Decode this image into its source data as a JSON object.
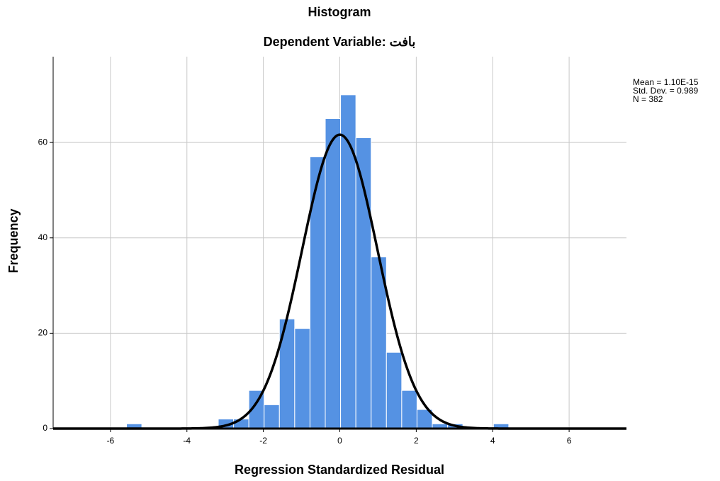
{
  "chart_data": {
    "type": "histogram",
    "title": "Histogram",
    "subtitle": "Dependent Variable: بافت",
    "x_label": "Regression Standardized Residual",
    "y_label": "Frequency",
    "bins": [
      -5.58,
      -5.18,
      -4.78,
      -4.38,
      -3.98,
      -3.58,
      -3.18,
      -2.78,
      -2.38,
      -1.98,
      -1.58,
      -1.18,
      -0.78,
      -0.38,
      0.02,
      0.42,
      0.82,
      1.22,
      1.62,
      2.02,
      2.42,
      2.82,
      3.22,
      3.62,
      4.02,
      4.42
    ],
    "values": [
      1,
      0,
      0,
      0,
      0,
      0,
      2,
      2,
      8,
      5,
      23,
      21,
      57,
      65,
      70,
      61,
      36,
      16,
      8,
      4,
      1,
      1,
      0,
      0,
      1
    ],
    "color": "#5592e3",
    "xlim": [
      -7.5,
      7.5
    ],
    "xticks": [
      -6,
      -4,
      -2,
      0,
      2,
      4,
      6
    ],
    "ylim": [
      0,
      78
    ],
    "yticks": [
      0,
      20,
      40,
      60
    ],
    "grid": true,
    "stats_text": [
      "Mean = 1.10E-15",
      "Std. Dev. = 0.989",
      "N = 382"
    ],
    "normal_curve": {
      "mean": 1.1e-15,
      "std_dev": 0.989,
      "n": 382,
      "color": "#000000"
    }
  }
}
